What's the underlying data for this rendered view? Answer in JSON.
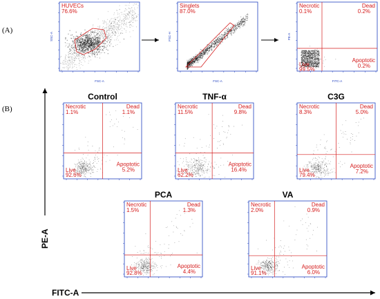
{
  "sections": {
    "a": "(A)",
    "b": "(B)"
  },
  "axis_labels": {
    "y": "PE-A",
    "x": "FITC-A"
  },
  "colors": {
    "gate": "#d41c1c",
    "axis": "#1f3fbf",
    "dots": "#333333"
  },
  "chart_data": [
    {
      "type": "scatter",
      "id": "p1",
      "title": "",
      "xlabel": "FSC-A",
      "ylabel": "SSC-A",
      "xticks": [
        "0",
        "5",
        "1e5",
        "2e5"
      ],
      "yticks": [
        "0",
        "1e5",
        "2e5"
      ],
      "gates": [
        {
          "name": "HUVECs",
          "percent": "76.6%"
        }
      ]
    },
    {
      "type": "scatter",
      "id": "p2",
      "title": "",
      "xlabel": "FSC-A",
      "ylabel": "FSC-H",
      "xticks": [
        "0",
        "5",
        "1e5",
        "2e5"
      ],
      "yticks": [
        "0",
        "1e5",
        "2e5"
      ],
      "gates": [
        {
          "name": "Singlets",
          "percent": "87.0%"
        }
      ]
    },
    {
      "type": "scatter",
      "id": "p3",
      "title": "",
      "xlabel": "FITC-A",
      "ylabel": "PE-A",
      "quadrants": {
        "necrotic": "0.1%",
        "dead": "0.2%",
        "apoptotic": "0.2%",
        "live": "99.5%"
      }
    },
    {
      "type": "scatter",
      "id": "control",
      "title": "Control",
      "quadrants": {
        "necrotic": "1.1%",
        "dead": "1.1%",
        "apoptotic": "5.2%",
        "live": "92.6%"
      }
    },
    {
      "type": "scatter",
      "id": "tnf",
      "title": "TNF-α",
      "quadrants": {
        "necrotic": "11.5%",
        "dead": "9.8%",
        "apoptotic": "16.4%",
        "live": "62.2%"
      }
    },
    {
      "type": "scatter",
      "id": "c3g",
      "title": "C3G",
      "quadrants": {
        "necrotic": "8.3%",
        "dead": "5.0%",
        "apoptotic": "7.2%",
        "live": "79.4%"
      }
    },
    {
      "type": "scatter",
      "id": "pca",
      "title": "PCA",
      "quadrants": {
        "necrotic": "1.5%",
        "dead": "1.3%",
        "apoptotic": "4.4%",
        "live": "92.8%"
      }
    },
    {
      "type": "scatter",
      "id": "va",
      "title": "VA",
      "quadrants": {
        "necrotic": "2.0%",
        "dead": "0.9%",
        "apoptotic": "6.0%",
        "live": "91.1%"
      }
    }
  ],
  "quadrant_names": {
    "necrotic": "Necrotic",
    "dead": "Dead",
    "apoptotic": "Apoptotic",
    "live": "Live"
  }
}
